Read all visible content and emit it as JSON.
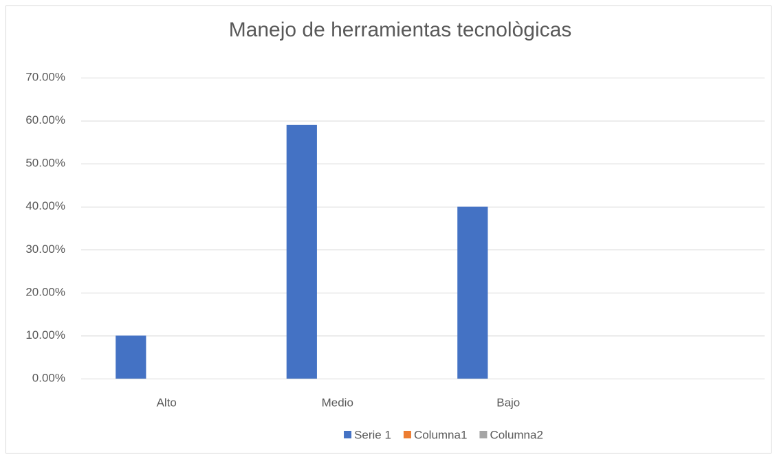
{
  "chart_data": {
    "type": "bar",
    "title": "Manejo de herramientas tecnològicas",
    "categories": [
      "Alto",
      "Medio",
      "Bajo",
      null
    ],
    "series": [
      {
        "name": "Serie 1",
        "color": "#4472c4",
        "values": [
          10,
          59,
          40,
          null
        ]
      },
      {
        "name": "Columna1",
        "color": "#ed7d31",
        "values": [
          null,
          null,
          null,
          null
        ]
      },
      {
        "name": "Columna2",
        "color": "#a5a5a5",
        "values": [
          null,
          null,
          null,
          null
        ]
      }
    ],
    "ylim": [
      0,
      70
    ],
    "yticks": [
      {
        "value": 0,
        "label": "0.00%"
      },
      {
        "value": 10,
        "label": "10.00%"
      },
      {
        "value": 20,
        "label": "20.00%"
      },
      {
        "value": 30,
        "label": "30.00%"
      },
      {
        "value": 40,
        "label": "40.00%"
      },
      {
        "value": 50,
        "label": "50.00%"
      },
      {
        "value": 60,
        "label": "60.00%"
      },
      {
        "value": 70,
        "label": "70.00%"
      }
    ],
    "grid": true,
    "legend": "bottom"
  }
}
